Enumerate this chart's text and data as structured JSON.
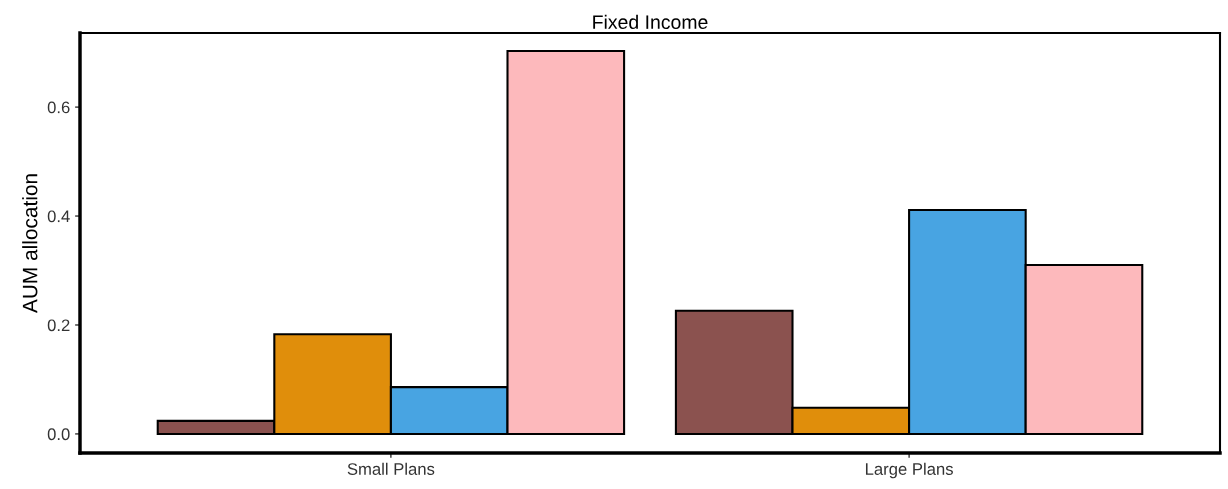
{
  "chart_data": {
    "type": "bar",
    "title": "Fixed Income",
    "ylabel": "AUM allocation",
    "categories": [
      "Small Plans",
      "Large Plans"
    ],
    "series": [
      {
        "color": "#8b524f",
        "values": [
          0.024,
          0.226
        ]
      },
      {
        "color": "#e08e0b",
        "values": [
          0.183,
          0.048
        ]
      },
      {
        "color": "#48a4e2",
        "values": [
          0.086,
          0.411
        ]
      },
      {
        "color": "#fdb9bc",
        "values": [
          0.703,
          0.31
        ]
      }
    ],
    "ylim": [
      -0.035,
      0.736
    ],
    "yticks": [
      {
        "value": 0,
        "label": "0.0"
      },
      {
        "value": 0.2,
        "label": "0.2"
      },
      {
        "value": 0.4,
        "label": "0.4"
      },
      {
        "value": 0.6,
        "label": "0.6"
      }
    ],
    "grid": false,
    "legend": false
  }
}
